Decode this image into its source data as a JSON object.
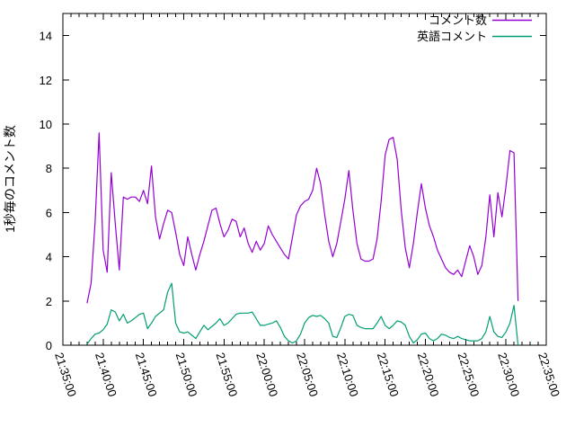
{
  "chart_data": {
    "type": "line",
    "title": "",
    "xlabel": "",
    "ylabel": "1秒毎のコメント数",
    "xlim": [
      "21:35:00",
      "22:35:00"
    ],
    "ylim": [
      0,
      15
    ],
    "grid": "off",
    "legend_position": "top-right-inside",
    "x_major_tick_labels": [
      "21:35:00",
      "21:40:00",
      "21:45:00",
      "21:50:00",
      "21:55:00",
      "22:00:00",
      "22:05:00",
      "22:10:00",
      "22:15:00",
      "22:20:00",
      "22:25:00",
      "22:30:00",
      "22:35:00"
    ],
    "x_minor_tick_interval_sec": 60,
    "y_ticks": [
      0,
      2,
      4,
      6,
      8,
      10,
      12,
      14
    ],
    "axis_color": "#000000",
    "background_color": "#ffffff",
    "x": [
      "21:38:00",
      "21:38:30",
      "21:39:00",
      "21:39:30",
      "21:40:00",
      "21:40:30",
      "21:41:00",
      "21:41:30",
      "21:42:00",
      "21:42:30",
      "21:43:00",
      "21:43:30",
      "21:44:00",
      "21:44:30",
      "21:45:00",
      "21:45:30",
      "21:46:00",
      "21:46:30",
      "21:47:00",
      "21:47:30",
      "21:48:00",
      "21:48:30",
      "21:49:00",
      "21:49:30",
      "21:50:00",
      "21:50:30",
      "21:51:00",
      "21:51:30",
      "21:52:00",
      "21:52:30",
      "21:53:00",
      "21:53:30",
      "21:54:00",
      "21:54:30",
      "21:55:00",
      "21:55:30",
      "21:56:00",
      "21:56:30",
      "21:57:00",
      "21:57:30",
      "21:58:00",
      "21:58:30",
      "21:59:00",
      "21:59:30",
      "22:00:00",
      "22:00:30",
      "22:01:00",
      "22:01:30",
      "22:02:00",
      "22:02:30",
      "22:03:00",
      "22:03:30",
      "22:04:00",
      "22:04:30",
      "22:05:00",
      "22:05:30",
      "22:06:00",
      "22:06:30",
      "22:07:00",
      "22:07:30",
      "22:08:00",
      "22:08:30",
      "22:09:00",
      "22:09:30",
      "22:10:00",
      "22:10:30",
      "22:11:00",
      "22:11:30",
      "22:12:00",
      "22:12:30",
      "22:13:00",
      "22:13:30",
      "22:14:00",
      "22:14:30",
      "22:15:00",
      "22:15:30",
      "22:16:00",
      "22:16:30",
      "22:17:00",
      "22:17:30",
      "22:18:00",
      "22:18:30",
      "22:19:00",
      "22:19:30",
      "22:20:00",
      "22:20:30",
      "22:21:00",
      "22:21:30",
      "22:22:00",
      "22:22:30",
      "22:23:00",
      "22:23:30",
      "22:24:00",
      "22:24:30",
      "22:25:00",
      "22:25:30",
      "22:26:00",
      "22:26:30",
      "22:27:00",
      "22:27:30",
      "22:28:00",
      "22:28:30",
      "22:29:00",
      "22:29:30",
      "22:30:00",
      "22:30:30",
      "22:31:00",
      "22:31:30"
    ],
    "series": [
      {
        "name": "コメント数",
        "color": "#9400D3",
        "values": [
          1.9,
          2.8,
          5.6,
          9.6,
          4.3,
          3.3,
          7.8,
          5.5,
          3.4,
          6.7,
          6.6,
          6.7,
          6.7,
          6.5,
          7.0,
          6.4,
          8.1,
          5.8,
          4.8,
          5.5,
          6.1,
          6.0,
          5.1,
          4.1,
          3.6,
          4.9,
          4.1,
          3.4,
          4.1,
          4.7,
          5.4,
          6.1,
          6.2,
          5.5,
          4.9,
          5.2,
          5.7,
          5.6,
          4.9,
          5.3,
          4.6,
          4.2,
          4.7,
          4.3,
          4.6,
          5.4,
          5.0,
          4.7,
          4.4,
          4.1,
          3.9,
          4.9,
          5.9,
          6.3,
          6.5,
          6.6,
          7.0,
          8.0,
          7.3,
          5.9,
          4.7,
          4.0,
          4.6,
          5.6,
          6.6,
          7.9,
          6.1,
          4.6,
          3.9,
          3.8,
          3.8,
          3.9,
          4.8,
          6.5,
          8.6,
          9.3,
          9.4,
          8.4,
          6.1,
          4.4,
          3.5,
          4.6,
          6.0,
          7.3,
          6.2,
          5.4,
          4.9,
          4.3,
          3.9,
          3.5,
          3.3,
          3.2,
          3.4,
          3.1,
          3.8,
          4.5,
          4.0,
          3.2,
          3.6,
          4.9,
          6.8,
          4.9,
          6.9,
          5.8,
          7.2,
          8.8,
          8.7,
          2.0
        ]
      },
      {
        "name": "英語コメント",
        "color": "#009E73",
        "values": [
          0.05,
          0.3,
          0.5,
          0.55,
          0.7,
          0.95,
          1.6,
          1.5,
          1.1,
          1.4,
          1.0,
          1.1,
          1.25,
          1.4,
          1.45,
          0.75,
          1.0,
          1.3,
          1.45,
          1.6,
          2.4,
          2.8,
          1.0,
          0.6,
          0.55,
          0.6,
          0.45,
          0.3,
          0.6,
          0.9,
          0.7,
          0.85,
          1.0,
          1.2,
          0.9,
          1.0,
          1.2,
          1.4,
          1.45,
          1.45,
          1.45,
          1.5,
          1.2,
          0.9,
          0.9,
          0.95,
          1.0,
          1.1,
          0.8,
          0.4,
          0.2,
          0.1,
          0.2,
          0.5,
          1.0,
          1.25,
          1.35,
          1.3,
          1.35,
          1.2,
          1.0,
          0.4,
          0.35,
          0.8,
          1.3,
          1.4,
          1.35,
          0.9,
          0.8,
          0.75,
          0.75,
          0.75,
          1.0,
          1.3,
          0.9,
          0.75,
          0.9,
          1.1,
          1.05,
          0.9,
          0.4,
          0.1,
          0.25,
          0.5,
          0.55,
          0.3,
          0.2,
          0.3,
          0.5,
          0.45,
          0.35,
          0.3,
          0.4,
          0.3,
          0.25,
          0.2,
          0.2,
          0.2,
          0.3,
          0.6,
          1.3,
          0.6,
          0.4,
          0.35,
          0.6,
          1.0,
          1.8,
          0.0
        ]
      }
    ]
  }
}
